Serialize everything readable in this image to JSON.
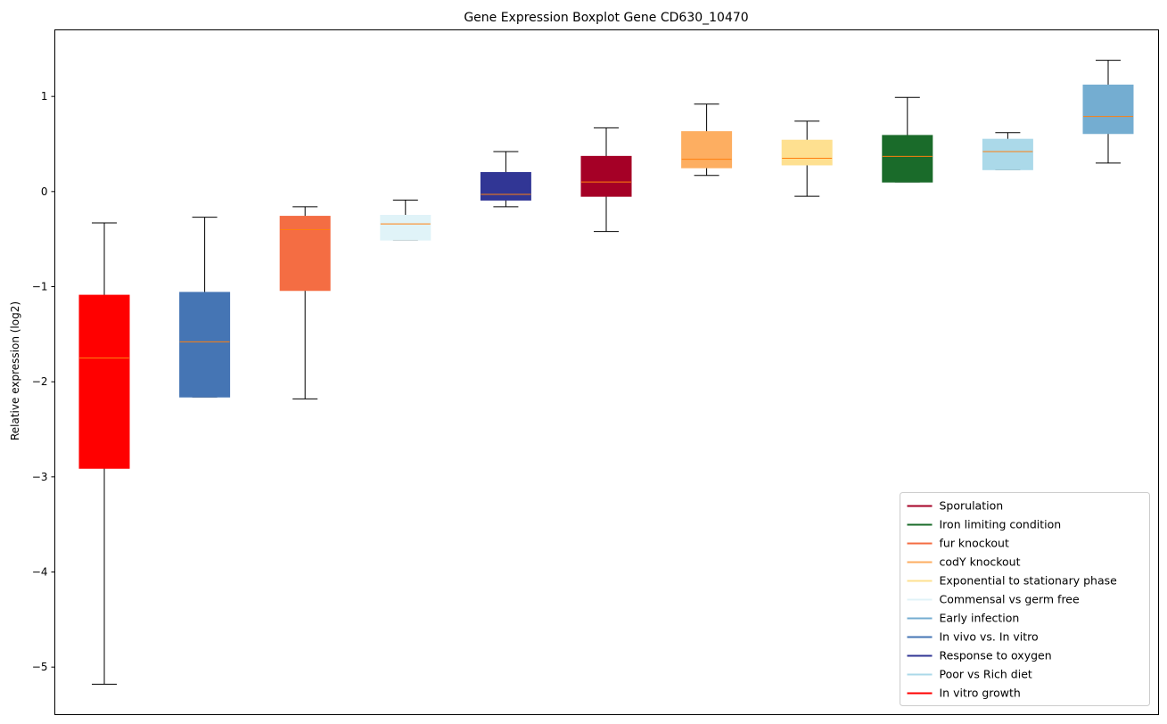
{
  "chart_data": {
    "type": "boxplot",
    "title": "Gene Expression Boxplot Gene CD630_10470",
    "xlabel": "",
    "ylabel": "Relative expression (log2)",
    "ylim": [
      -5.5,
      1.7
    ],
    "yticks": [
      1,
      0,
      -1,
      -2,
      -3,
      -4,
      -5
    ],
    "ytick_labels": [
      "1",
      "0",
      "−1",
      "−2",
      "−3",
      "−4",
      "−5"
    ],
    "grid": false,
    "median_color": "#ff7f0e",
    "whisker_color": "#000000",
    "legend_position": "bottom-right",
    "boxes": [
      {
        "name": "In vitro growth",
        "color": "#ff0000",
        "whisker_low": -5.18,
        "q1": -2.91,
        "median": -1.75,
        "q3": -1.09,
        "whisker_high": -0.33
      },
      {
        "name": "In vivo vs. In vitro",
        "color": "#4575b4",
        "whisker_low": -2.16,
        "q1": -2.16,
        "median": -1.58,
        "q3": -1.06,
        "whisker_high": -0.27
      },
      {
        "name": "fur knockout",
        "color": "#f46d43",
        "whisker_low": -2.18,
        "q1": -1.04,
        "median": -0.4,
        "q3": -0.26,
        "whisker_high": -0.16
      },
      {
        "name": "Commensal vs germ free",
        "color": "#e0f3f8",
        "whisker_low": -0.51,
        "q1": -0.51,
        "median": -0.34,
        "q3": -0.25,
        "whisker_high": -0.09
      },
      {
        "name": "Response to oxygen",
        "color": "#313695",
        "whisker_low": -0.16,
        "q1": -0.09,
        "median": -0.03,
        "q3": 0.2,
        "whisker_high": 0.42
      },
      {
        "name": "Sporulation",
        "color": "#a50026",
        "whisker_low": -0.42,
        "q1": -0.05,
        "median": 0.1,
        "q3": 0.37,
        "whisker_high": 0.67
      },
      {
        "name": "codY knockout",
        "color": "#fdae61",
        "whisker_low": 0.17,
        "q1": 0.25,
        "median": 0.34,
        "q3": 0.63,
        "whisker_high": 0.92
      },
      {
        "name": "Exponential to stationary phase",
        "color": "#fee090",
        "whisker_low": -0.05,
        "q1": 0.28,
        "median": 0.35,
        "q3": 0.54,
        "whisker_high": 0.74
      },
      {
        "name": "Iron limiting condition",
        "color": "#1a6b2a",
        "whisker_low": 0.1,
        "q1": 0.1,
        "median": 0.37,
        "q3": 0.59,
        "whisker_high": 0.99
      },
      {
        "name": "Poor vs Rich diet",
        "color": "#abd9e9",
        "whisker_low": 0.23,
        "q1": 0.23,
        "median": 0.42,
        "q3": 0.55,
        "whisker_high": 0.62
      },
      {
        "name": "Early infection",
        "color": "#74add1",
        "whisker_low": 0.3,
        "q1": 0.61,
        "median": 0.79,
        "q3": 1.12,
        "whisker_high": 1.38
      }
    ],
    "legend": [
      {
        "label": "Sporulation",
        "color": "#a50026"
      },
      {
        "label": "Iron limiting condition",
        "color": "#1a6b2a"
      },
      {
        "label": "fur knockout",
        "color": "#f46d43"
      },
      {
        "label": "codY knockout",
        "color": "#fdae61"
      },
      {
        "label": "Exponential to stationary phase",
        "color": "#fee090"
      },
      {
        "label": "Commensal vs germ free",
        "color": "#e0f3f8"
      },
      {
        "label": "Early infection",
        "color": "#74add1"
      },
      {
        "label": "In vivo vs. In vitro",
        "color": "#4575b4"
      },
      {
        "label": "Response to oxygen",
        "color": "#313695"
      },
      {
        "label": "Poor vs Rich diet",
        "color": "#abd9e9"
      },
      {
        "label": "In vitro growth",
        "color": "#ff0000"
      }
    ]
  }
}
